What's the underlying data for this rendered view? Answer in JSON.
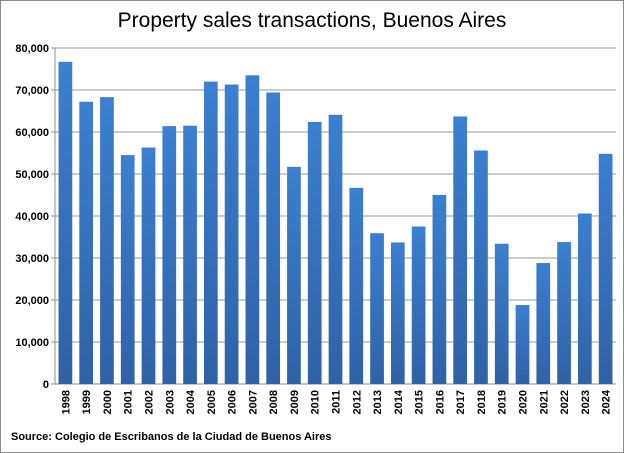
{
  "chart_data": {
    "type": "bar",
    "title": "Property sales transactions, Buenos Aires",
    "source": "Source: Colegio de Escribanos de la Ciudad de Buenos Aires",
    "categories": [
      "1998",
      "1999",
      "2000",
      "2001",
      "2002",
      "2003",
      "2004",
      "2005",
      "2006",
      "2007",
      "2008",
      "2009",
      "2010",
      "2011",
      "2012",
      "2013",
      "2014",
      "2015",
      "2016",
      "2017",
      "2018",
      "2019",
      "2020",
      "2021",
      "2022",
      "2023",
      "2024"
    ],
    "values": [
      76700,
      67200,
      68300,
      54500,
      56300,
      61400,
      61500,
      72000,
      71300,
      73500,
      69400,
      51700,
      62400,
      64100,
      46700,
      35900,
      33700,
      37500,
      45000,
      63700,
      55600,
      33400,
      18800,
      28800,
      33800,
      40600,
      54800
    ],
    "ylim": [
      0,
      80000
    ],
    "yticks": [
      "0",
      "10,000",
      "20,000",
      "30,000",
      "40,000",
      "50,000",
      "60,000",
      "70,000",
      "80,000"
    ],
    "grid": true,
    "bar_color": "#3a78c6",
    "bar_color_dark": "#2f62a6"
  }
}
